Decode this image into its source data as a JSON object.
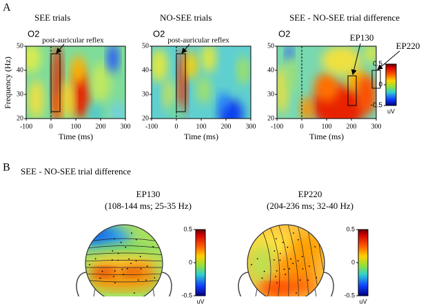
{
  "panel_a": {
    "label": "A",
    "plots": [
      {
        "title": "SEE trials",
        "channel": "O2",
        "annotations": [
          "post-auricular reflex"
        ]
      },
      {
        "title": "NO-SEE trials",
        "channel": "O2",
        "annotations": [
          "post-auricular reflex"
        ]
      },
      {
        "title": "SEE - NO-SEE trial difference",
        "channel": "O2",
        "annotations": [
          "EP130",
          "EP220"
        ]
      }
    ],
    "y_axis_label": "Frequency (Hz)",
    "x_axis_label": "Time (ms)",
    "xticks": [
      -100,
      0,
      100,
      200,
      300
    ],
    "yticks": [
      20,
      30,
      40,
      50
    ],
    "colorbar": {
      "ticks": [
        0.5,
        0,
        -0.5
      ],
      "unit": "uV"
    }
  },
  "panel_b": {
    "label": "B",
    "title": "SEE - NO-SEE trial difference",
    "maps": [
      {
        "title": "EP130",
        "subtitle": "(108-144 ms; 25-35 Hz)"
      },
      {
        "title": "EP220",
        "subtitle": "(204-236 ms; 32-40 Hz)"
      }
    ],
    "colorbar": {
      "ticks": [
        0.5,
        0,
        -0.5
      ],
      "unit": "uV"
    }
  }
}
